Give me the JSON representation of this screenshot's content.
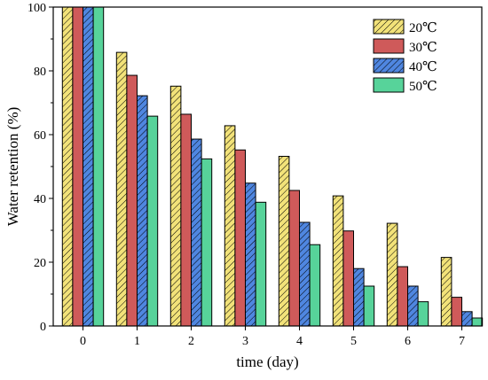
{
  "chart_data": {
    "type": "bar",
    "xlabel": "time (day)",
    "ylabel": "Water retention (%)",
    "categories": [
      "0",
      "1",
      "2",
      "3",
      "4",
      "5",
      "6",
      "7"
    ],
    "ylim": [
      0,
      100
    ],
    "yticks": [
      0,
      20,
      40,
      60,
      80,
      100
    ],
    "legend_position": "top-right",
    "series": [
      {
        "name": "20℃",
        "color": "#f2e279",
        "pattern": "diagonal-hatch",
        "values": [
          100,
          85.8,
          75.2,
          62.8,
          53.2,
          40.8,
          32.2,
          21.5
        ]
      },
      {
        "name": "30℃",
        "color": "#cf5a5a",
        "pattern": "solid",
        "values": [
          100,
          78.6,
          66.4,
          55.2,
          42.5,
          29.8,
          18.6,
          9.0
        ]
      },
      {
        "name": "40℃",
        "color": "#4f86e0",
        "pattern": "diagonal-hatch",
        "values": [
          100,
          72.2,
          58.6,
          44.8,
          32.5,
          18.0,
          12.5,
          4.5
        ]
      },
      {
        "name": "50℃",
        "color": "#57d39a",
        "pattern": "solid",
        "values": [
          100,
          65.8,
          52.4,
          38.8,
          25.5,
          12.5,
          7.6,
          2.5
        ]
      }
    ]
  }
}
